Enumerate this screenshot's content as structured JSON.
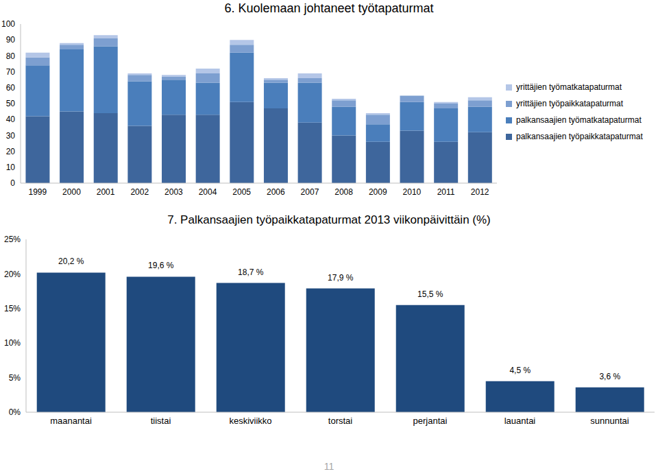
{
  "page": "11",
  "chart_data": [
    {
      "type": "bar",
      "title": "6. Kuolemaan johtaneet työtapaturmat",
      "stacked": true,
      "legend": "right",
      "grid": false,
      "categories": [
        "1999",
        "2000",
        "2001",
        "2002",
        "2003",
        "2004",
        "2005",
        "2006",
        "2007",
        "2008",
        "2009",
        "2010",
        "2011",
        "2012"
      ],
      "ylim": [
        0,
        100
      ],
      "yticks": [
        0,
        10,
        20,
        30,
        40,
        50,
        60,
        70,
        80,
        90,
        100
      ],
      "series": [
        {
          "name": "palkansaajien työpaikkatapaturmat",
          "color": "#3e669c",
          "values": [
            42,
            45,
            44,
            36,
            43,
            43,
            51,
            47,
            38,
            30,
            26,
            33,
            26,
            32
          ]
        },
        {
          "name": "palkansaajien työmatkatapaturmat",
          "color": "#4a7ebb",
          "values": [
            32,
            39,
            42,
            28,
            22,
            20,
            31,
            16,
            25,
            18,
            11,
            18,
            21,
            16
          ]
        },
        {
          "name": "yrittäjien työpaikkatapaturmat",
          "color": "#7d9fd0",
          "values": [
            5,
            3,
            5,
            4,
            2,
            6,
            5,
            2,
            3,
            4,
            6,
            4,
            3,
            4
          ]
        },
        {
          "name": "yrittäjien työmatkatapaturmat",
          "color": "#b4c6e7",
          "values": [
            3,
            1,
            2,
            1,
            1,
            3,
            3,
            1,
            3,
            1,
            1,
            0,
            1,
            2
          ]
        }
      ]
    },
    {
      "type": "bar",
      "title": "7. Palkansaajien työpaikkatapaturmat 2013 viikonpäivittäin (%)",
      "categories": [
        "maanantai",
        "tiistai",
        "keskiviikko",
        "torstai",
        "perjantai",
        "lauantai",
        "sunnuntai"
      ],
      "values": [
        20.2,
        19.6,
        18.7,
        17.9,
        15.5,
        4.5,
        3.6
      ],
      "value_labels": [
        "20,2 %",
        "19,6 %",
        "18,7 %",
        "17,9 %",
        "15,5 %",
        "4,5 %",
        "3,6 %"
      ],
      "color": "#1f4a7e",
      "ylim": [
        0,
        25
      ],
      "yticks": [
        {
          "value": 0,
          "label": "0%"
        },
        {
          "value": 5,
          "label": "5%"
        },
        {
          "value": 10,
          "label": "10%"
        },
        {
          "value": 15,
          "label": "15%"
        },
        {
          "value": 20,
          "label": "20%"
        },
        {
          "value": 25,
          "label": "25%"
        }
      ],
      "data_labels": true,
      "grid": false
    }
  ]
}
